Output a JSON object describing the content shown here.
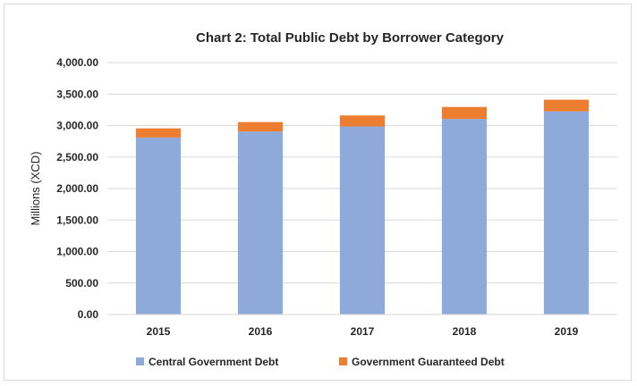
{
  "chart_data": {
    "type": "bar",
    "stacked": true,
    "title": "Chart 2: Total Public Debt by Borrower Category",
    "xlabel": "",
    "ylabel": "Millions (XCD)",
    "categories": [
      "2015",
      "2016",
      "2017",
      "2018",
      "2019"
    ],
    "series": [
      {
        "name": "Central Government Debt",
        "color": "#8eaadb",
        "values": [
          2810,
          2905,
          2985,
          3105,
          3225
        ]
      },
      {
        "name": "Government Guaranteed Debt",
        "color": "#ed7d31",
        "values": [
          145,
          150,
          175,
          190,
          185
        ]
      }
    ],
    "ylim": [
      0,
      4000
    ],
    "yticks": [
      0,
      500,
      1000,
      1500,
      2000,
      2500,
      3000,
      3500,
      4000
    ],
    "ytick_labels": [
      "0.00",
      "500.00",
      "1,000.00",
      "1,500.00",
      "2,000.00",
      "2,500.00",
      "3,000.00",
      "3,500.00",
      "4,000.00"
    ],
    "grid": true,
    "legend_position": "bottom"
  }
}
